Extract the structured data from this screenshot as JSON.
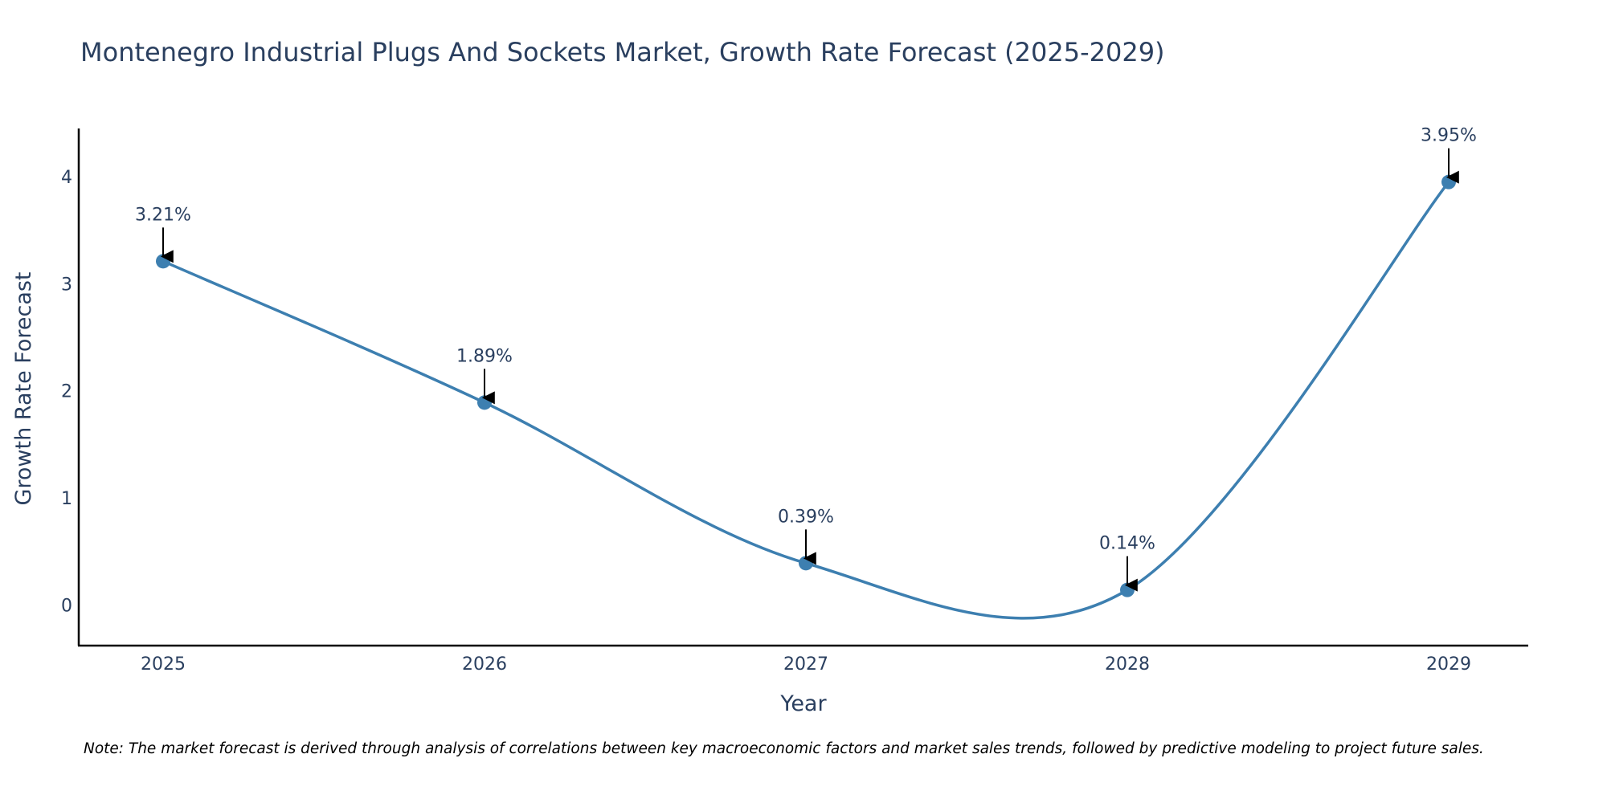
{
  "chart_data": {
    "type": "line",
    "title": "Montenegro Industrial Plugs And Sockets Market, Growth Rate Forecast (2025-2029)",
    "xlabel": "Year",
    "ylabel": "Growth Rate Forecast",
    "categories": [
      "2025",
      "2026",
      "2027",
      "2028",
      "2029"
    ],
    "series": [
      {
        "name": "Growth Rate Forecast",
        "values": [
          3.21,
          1.89,
          0.39,
          0.14,
          3.95
        ],
        "labels": [
          "3.21%",
          "1.89%",
          "0.39%",
          "0.14%",
          "3.95%"
        ]
      }
    ],
    "ylim": [
      -0.38,
      4.45
    ],
    "yticks": [
      0,
      1,
      2,
      3,
      4
    ],
    "ytick_labels": [
      "0",
      "1",
      "2",
      "3",
      "4"
    ],
    "grid": false,
    "legend": "none",
    "line_shape": "spline"
  },
  "colors": {
    "line": "#3d7fb0",
    "marker": "#3d7fb0",
    "axis": "#000000",
    "arrow": "#000000",
    "text": "#2a3f5f"
  },
  "note": "Note: The market forecast is derived through analysis of correlations between key macroeconomic factors and market sales trends, followed by predictive modeling to project future sales."
}
